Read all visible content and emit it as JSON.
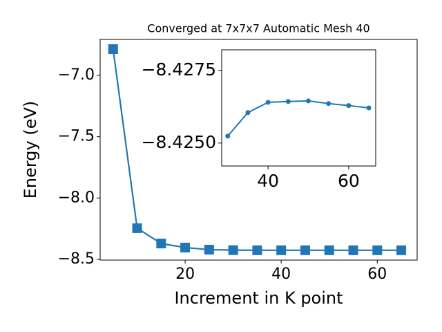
{
  "chart_data": [
    {
      "type": "line",
      "title": "Converged at 7x7x7 Automatic Mesh 40",
      "x_label": "Increment in K point",
      "y_label": "Energy (eV)",
      "x": [
        5,
        10,
        15,
        20,
        25,
        30,
        35,
        40,
        45,
        50,
        55,
        60,
        65
      ],
      "series": [
        {
          "color": "#1f77b4",
          "marker": "square",
          "values": [
            -6.786,
            -8.246,
            -8.371,
            -8.404,
            -8.421,
            -8.425,
            -8.426,
            -8.426,
            -8.426,
            -8.426,
            -8.426,
            -8.426,
            -8.426
          ]
        }
      ],
      "xlim": [
        2.3,
        68.3
      ],
      "xticks": [
        20,
        40,
        60
      ],
      "ylim": [
        -8.506,
        -6.707
      ],
      "yticks": [
        {
          "value": -7.0,
          "label": "−7.0"
        },
        {
          "value": -7.5,
          "label": "−7.5"
        },
        {
          "value": -8.0,
          "label": "−8.0"
        },
        {
          "value": -8.5,
          "label": "−8.5"
        }
      ]
    },
    {
      "type": "line",
      "x": [
        30,
        35,
        40,
        45,
        50,
        55,
        60,
        65
      ],
      "series": [
        {
          "color": "#1f77b4",
          "marker": "circle",
          "values": [
            -8.42524,
            -8.42605,
            -8.4264,
            -8.42643,
            -8.42645,
            -8.42636,
            -8.42629,
            -8.42621
          ]
        }
      ],
      "xlim": [
        28.5,
        66.7
      ],
      "xticks": [
        40,
        60
      ],
      "ylim": [
        -8.42421,
        -8.42821
      ],
      "yticks": [
        {
          "value": -8.4275,
          "label": "−8.4275"
        },
        {
          "value": -8.425,
          "label": "−8.4250"
        }
      ]
    }
  ]
}
